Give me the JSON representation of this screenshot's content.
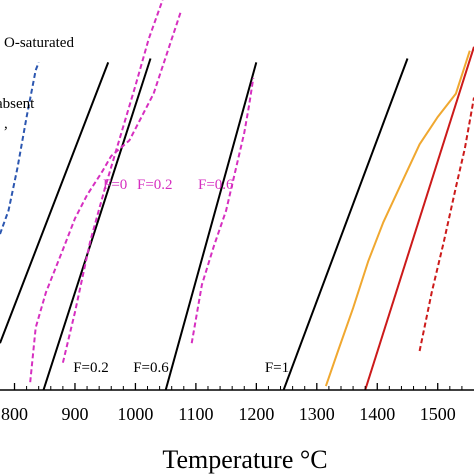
{
  "chart_data": {
    "type": "line",
    "xlabel": "Temperature °C",
    "xlim": [
      776,
      1560
    ],
    "ylim": [
      0,
      1
    ],
    "x_ticks": [
      "800",
      "900",
      "1000",
      "1100",
      "1200",
      "1300",
      "1400",
      "1500"
    ],
    "x_tick_values": [
      800,
      900,
      1000,
      1100,
      1200,
      1300,
      1400,
      1500
    ],
    "annotations": {
      "saturated": "O-saturated",
      "absent": "absent",
      "comma": ","
    },
    "series": [
      {
        "style": "dashed",
        "color": "#2b56b0",
        "points": [
          [
            776,
            0.4
          ],
          [
            790,
            0.46
          ],
          [
            805,
            0.57
          ],
          [
            820,
            0.7
          ],
          [
            835,
            0.82
          ],
          [
            840,
            0.84
          ]
        ]
      },
      {
        "style": "solid",
        "color": "#000000",
        "points": [
          [
            776,
            0.12
          ],
          [
            955,
            0.84
          ]
        ]
      },
      {
        "label": "F=0.2",
        "style": "solid",
        "color": "#000000",
        "points": [
          [
            848,
            0.0
          ],
          [
            1025,
            0.85
          ]
        ]
      },
      {
        "label": "F=0.6",
        "style": "solid",
        "color": "#000000",
        "points": [
          [
            1050,
            0.0
          ],
          [
            1200,
            0.84
          ]
        ]
      },
      {
        "label": "F=1",
        "style": "solid",
        "color": "#000000",
        "points": [
          [
            1245,
            0.0
          ],
          [
            1450,
            0.85
          ]
        ]
      },
      {
        "label": "F=0",
        "style": "dashed",
        "color": "#d62fc0",
        "points": [
          [
            826,
            0.02
          ],
          [
            835,
            0.16
          ],
          [
            852,
            0.25
          ],
          [
            880,
            0.36
          ],
          [
            900,
            0.44
          ],
          [
            920,
            0.5
          ],
          [
            945,
            0.56
          ],
          [
            960,
            0.6
          ],
          [
            990,
            0.64
          ],
          [
            1030,
            0.76
          ],
          [
            1075,
            0.97
          ]
        ]
      },
      {
        "label": "F=0.2",
        "style": "dashed",
        "color": "#d62fc0",
        "points": [
          [
            880,
            0.07
          ],
          [
            900,
            0.2
          ],
          [
            925,
            0.38
          ],
          [
            950,
            0.52
          ],
          [
            975,
            0.65
          ],
          [
            1000,
            0.78
          ],
          [
            1022,
            0.9
          ],
          [
            1045,
            1.0
          ]
        ]
      },
      {
        "label": "F=0.6",
        "style": "dashed",
        "color": "#d62fc0",
        "points": [
          [
            1093,
            0.12
          ],
          [
            1110,
            0.27
          ],
          [
            1130,
            0.37
          ],
          [
            1150,
            0.46
          ],
          [
            1165,
            0.56
          ],
          [
            1180,
            0.66
          ],
          [
            1188,
            0.73
          ],
          [
            1195,
            0.8
          ]
        ]
      },
      {
        "style": "solid",
        "color": "#f0a830",
        "points": [
          [
            1315,
            0.01
          ],
          [
            1335,
            0.1
          ],
          [
            1360,
            0.21
          ],
          [
            1385,
            0.33
          ],
          [
            1410,
            0.43
          ],
          [
            1440,
            0.53
          ],
          [
            1470,
            0.63
          ],
          [
            1500,
            0.7
          ],
          [
            1530,
            0.76
          ],
          [
            1553,
            0.87
          ]
        ]
      },
      {
        "style": "solid",
        "color": "#cc1a1a",
        "points": [
          [
            1380,
            0.0
          ],
          [
            1560,
            0.88
          ]
        ]
      },
      {
        "style": "dashed",
        "color": "#cc1a1a",
        "points": [
          [
            1470,
            0.1
          ],
          [
            1490,
            0.25
          ],
          [
            1510,
            0.38
          ],
          [
            1530,
            0.52
          ],
          [
            1545,
            0.62
          ],
          [
            1560,
            0.75
          ]
        ]
      }
    ]
  }
}
